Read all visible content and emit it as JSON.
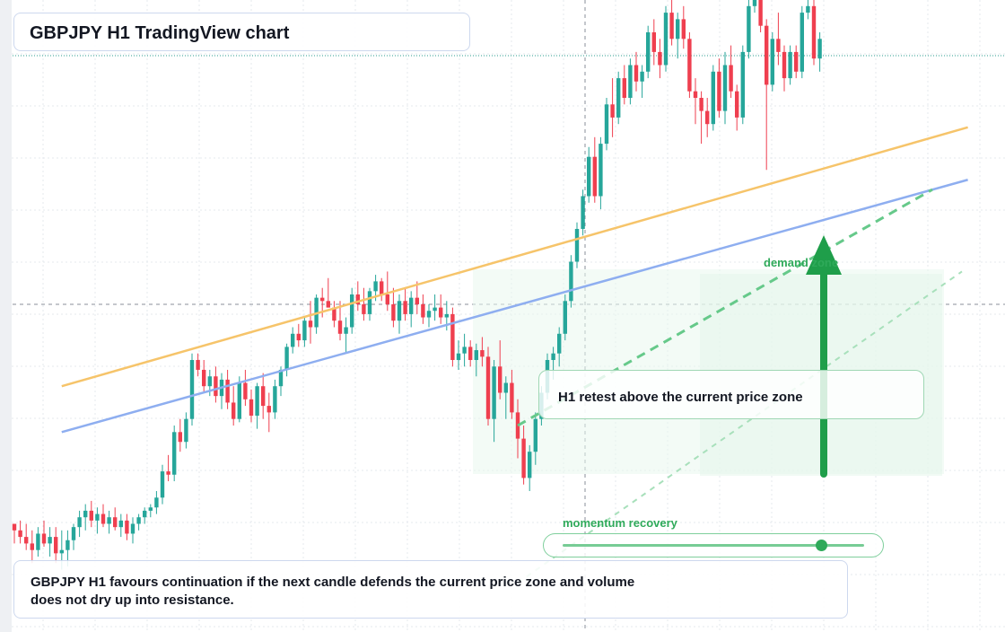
{
  "header": {
    "title": "GBPJPY H1 TradingView chart"
  },
  "annotations": {
    "demand_label": "demand zone",
    "retest_note": "H1 retest above the current price zone",
    "momentum_label": "momentum recovery",
    "caption": "GBPJPY H1 favours continuation if the next candle defends the current price zone and volume does not dry up into resistance."
  },
  "colors": {
    "bull": "#26a69a",
    "bear": "#ef3f4f",
    "accent_green": "#1f9e4a",
    "trend_orange": "#f6c46a",
    "trend_blue": "#8eaef0"
  },
  "icons": {
    "arrow": "up-arrow-icon"
  },
  "slider": {
    "value": 0.86
  },
  "chart_data": {
    "type": "candlestick",
    "title": "GBPJPY H1 TradingView chart",
    "xlabel": "",
    "ylabel": "",
    "grid": true,
    "candles_ohlc": [
      [
        10,
        10,
        4,
        8
      ],
      [
        8,
        11,
        4,
        6
      ],
      [
        6,
        10,
        2,
        4
      ],
      [
        4,
        8,
        -2,
        2
      ],
      [
        2,
        9,
        0,
        7
      ],
      [
        7,
        11,
        3,
        4
      ],
      [
        4,
        9,
        0,
        6
      ],
      [
        6,
        9,
        -2,
        1
      ],
      [
        1,
        8,
        -4,
        2
      ],
      [
        2,
        8,
        -3,
        5
      ],
      [
        5,
        10,
        2,
        9
      ],
      [
        9,
        14,
        6,
        12
      ],
      [
        12,
        16,
        8,
        14
      ],
      [
        14,
        17,
        9,
        11
      ],
      [
        11,
        15,
        7,
        13
      ],
      [
        13,
        16,
        9,
        10
      ],
      [
        10,
        14,
        7,
        12
      ],
      [
        12,
        15,
        8,
        9
      ],
      [
        9,
        13,
        6,
        11
      ],
      [
        11,
        13,
        5,
        7
      ],
      [
        7,
        12,
        4,
        10
      ],
      [
        10,
        13,
        8,
        12
      ],
      [
        12,
        15,
        10,
        14
      ],
      [
        14,
        16,
        12,
        15
      ],
      [
        15,
        20,
        13,
        18
      ],
      [
        18,
        28,
        16,
        26
      ],
      [
        26,
        31,
        23,
        25
      ],
      [
        25,
        40,
        23,
        38
      ],
      [
        38,
        42,
        32,
        35
      ],
      [
        35,
        44,
        33,
        42
      ],
      [
        42,
        62,
        40,
        60
      ],
      [
        60,
        62,
        55,
        57
      ],
      [
        57,
        60,
        50,
        52
      ],
      [
        52,
        57,
        49,
        55
      ],
      [
        55,
        58,
        47,
        49
      ],
      [
        49,
        56,
        45,
        54
      ],
      [
        54,
        57,
        45,
        47
      ],
      [
        47,
        52,
        40,
        42
      ],
      [
        42,
        55,
        41,
        53
      ],
      [
        53,
        57,
        46,
        48
      ],
      [
        48,
        51,
        41,
        43
      ],
      [
        43,
        53,
        39,
        52
      ],
      [
        52,
        56,
        42,
        46
      ],
      [
        46,
        50,
        38,
        44
      ],
      [
        44,
        54,
        42,
        52
      ],
      [
        52,
        58,
        49,
        57
      ],
      [
        57,
        65,
        55,
        64
      ],
      [
        64,
        70,
        62,
        68
      ],
      [
        68,
        71,
        64,
        66
      ],
      [
        66,
        73,
        64,
        72
      ],
      [
        72,
        78,
        65,
        70
      ],
      [
        70,
        80,
        68,
        79
      ],
      [
        79,
        82,
        73,
        78
      ],
      [
        78,
        85,
        76,
        76
      ],
      [
        76,
        78,
        70,
        72
      ],
      [
        72,
        78,
        66,
        68
      ],
      [
        68,
        73,
        62,
        70
      ],
      [
        70,
        82,
        68,
        80
      ],
      [
        80,
        84,
        75,
        77
      ],
      [
        77,
        82,
        72,
        74
      ],
      [
        74,
        82,
        72,
        81
      ],
      [
        81,
        86,
        78,
        84
      ],
      [
        84,
        85,
        78,
        80
      ],
      [
        80,
        87,
        75,
        77
      ],
      [
        77,
        82,
        70,
        72
      ],
      [
        72,
        80,
        68,
        78
      ],
      [
        78,
        82,
        72,
        74
      ],
      [
        74,
        81,
        70,
        79
      ],
      [
        79,
        84,
        74,
        77
      ],
      [
        77,
        80,
        71,
        73
      ],
      [
        73,
        77,
        70,
        75
      ],
      [
        75,
        80,
        72,
        76
      ],
      [
        76,
        80,
        71,
        73
      ],
      [
        73,
        78,
        69,
        74
      ],
      [
        74,
        76,
        58,
        60
      ],
      [
        60,
        66,
        57,
        62
      ],
      [
        62,
        68,
        58,
        64
      ],
      [
        64,
        66,
        58,
        60
      ],
      [
        60,
        65,
        55,
        63
      ],
      [
        63,
        67,
        58,
        61
      ],
      [
        61,
        64,
        40,
        42
      ],
      [
        42,
        60,
        35,
        58
      ],
      [
        58,
        66,
        48,
        50
      ],
      [
        50,
        55,
        42,
        53
      ],
      [
        53,
        57,
        42,
        44
      ],
      [
        44,
        48,
        30,
        36
      ],
      [
        36,
        40,
        22,
        24
      ],
      [
        24,
        34,
        20,
        32
      ],
      [
        32,
        44,
        28,
        42
      ],
      [
        42,
        52,
        40,
        50
      ],
      [
        50,
        62,
        48,
        60
      ],
      [
        60,
        64,
        54,
        62
      ],
      [
        62,
        70,
        58,
        68
      ],
      [
        68,
        80,
        66,
        78
      ],
      [
        78,
        92,
        76,
        90
      ],
      [
        90,
        102,
        88,
        100
      ],
      [
        100,
        112,
        98,
        110
      ],
      [
        110,
        125,
        108,
        122
      ],
      [
        122,
        128,
        108,
        110
      ],
      [
        110,
        128,
        106,
        126
      ],
      [
        126,
        140,
        124,
        138
      ],
      [
        138,
        146,
        128,
        134
      ],
      [
        134,
        148,
        132,
        146
      ],
      [
        146,
        150,
        138,
        140
      ],
      [
        140,
        152,
        138,
        150
      ],
      [
        150,
        154,
        142,
        145
      ],
      [
        145,
        150,
        140,
        148
      ],
      [
        148,
        162,
        146,
        160
      ],
      [
        160,
        164,
        150,
        154
      ],
      [
        154,
        158,
        146,
        150
      ],
      [
        150,
        168,
        148,
        166
      ],
      [
        166,
        170,
        156,
        158
      ],
      [
        158,
        166,
        152,
        164
      ],
      [
        164,
        168,
        155,
        158
      ],
      [
        158,
        160,
        140,
        142
      ],
      [
        142,
        146,
        132,
        140
      ],
      [
        140,
        142,
        126,
        136
      ],
      [
        136,
        140,
        128,
        132
      ],
      [
        132,
        150,
        130,
        148
      ],
      [
        148,
        152,
        134,
        136
      ],
      [
        136,
        154,
        132,
        150
      ],
      [
        150,
        156,
        140,
        142
      ],
      [
        142,
        144,
        130,
        134
      ],
      [
        134,
        156,
        132,
        154
      ],
      [
        154,
        170,
        152,
        168
      ],
      [
        168,
        176,
        166,
        174
      ],
      [
        174,
        178,
        160,
        162
      ],
      [
        162,
        164,
        118,
        144
      ],
      [
        144,
        160,
        142,
        158
      ],
      [
        158,
        166,
        150,
        154
      ],
      [
        154,
        156,
        142,
        146
      ],
      [
        146,
        156,
        144,
        154
      ],
      [
        154,
        156,
        146,
        148
      ],
      [
        148,
        168,
        146,
        166
      ],
      [
        166,
        176,
        164,
        168
      ],
      [
        168,
        170,
        150,
        152
      ],
      [
        152,
        160,
        148,
        158
      ]
    ],
    "overlays": [
      {
        "name": "trend-orange",
        "from": [
          8,
          52
        ],
        "to": [
          161,
          131
        ]
      },
      {
        "name": "trend-blue",
        "from": [
          8,
          38
        ],
        "to": [
          161,
          115
        ]
      },
      {
        "name": "trend-green-dashed",
        "from": [
          85,
          40
        ],
        "to": [
          155,
          112
        ]
      },
      {
        "name": "trend-green-dotted",
        "from": [
          85,
          -8
        ],
        "to": [
          160,
          87
        ]
      }
    ]
  }
}
